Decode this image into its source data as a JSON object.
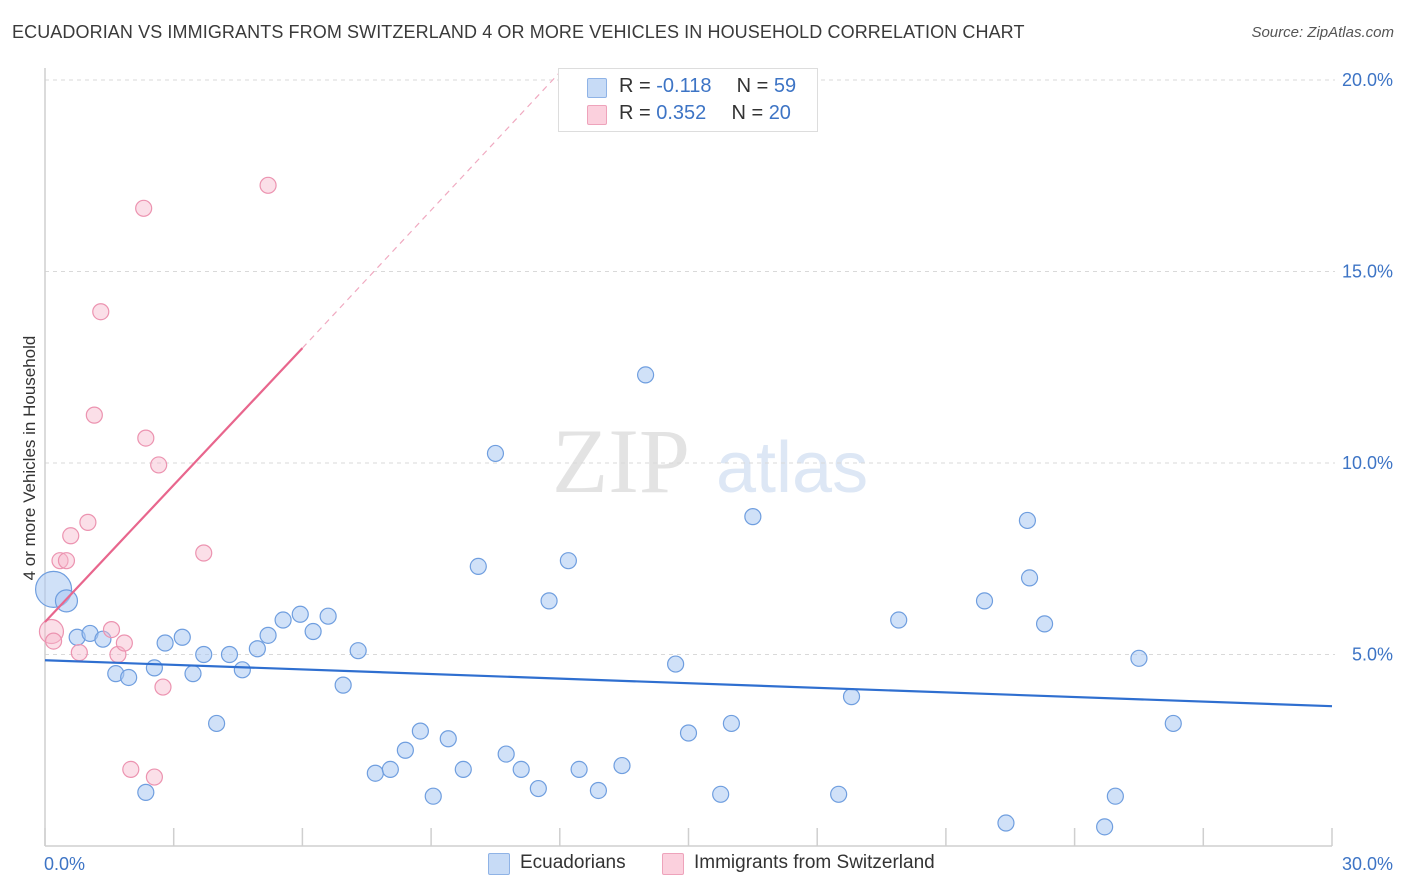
{
  "title": "ECUADORIAN VS IMMIGRANTS FROM SWITZERLAND 4 OR MORE VEHICLES IN HOUSEHOLD CORRELATION CHART",
  "source": "Source: ZipAtlas.com",
  "watermark": {
    "zip": "ZIP",
    "atlas": "atlas"
  },
  "legend": {
    "rows": [
      {
        "r_label": "R =",
        "r_value": "-0.118",
        "n_label": "N =",
        "n_value": "59",
        "color": "#a9c9f2"
      },
      {
        "r_label": "R =",
        "r_value": "0.352",
        "n_label": "N =",
        "n_value": "20",
        "color": "#f7b8cb"
      }
    ]
  },
  "bottom_legend": [
    {
      "label": "Ecuadorians",
      "color": "#a9c9f2"
    },
    {
      "label": "Immigrants from Switzerland",
      "color": "#f7b8cb"
    }
  ],
  "colors": {
    "blue_point": "#a9c9f2",
    "blue_line": "#2f6fd0",
    "pink_point": "#f7b8cb",
    "pink_line": "#e8668d",
    "tick_text": "#3d74c5",
    "grid": "#d9d9d9"
  },
  "chart_data": {
    "type": "scatter",
    "title": "ECUADORIAN VS IMMIGRANTS FROM SWITZERLAND 4 OR MORE VEHICLES IN HOUSEHOLD CORRELATION CHART",
    "xlabel": "",
    "ylabel": "4 or more Vehicles in Household",
    "xlim": [
      0,
      30
    ],
    "ylim": [
      0,
      20.5
    ],
    "x_tick_labels": [
      "0.0%",
      "30.0%"
    ],
    "y_ticks": [
      5,
      10,
      15,
      20
    ],
    "y_tick_labels": [
      "5.0%",
      "10.0%",
      "15.0%",
      "20.0%"
    ],
    "grid": true,
    "series": [
      {
        "name": "Ecuadorians",
        "color": "#a9c9f2",
        "points": [
          [
            0.2,
            6.7
          ],
          [
            0.5,
            6.4
          ],
          [
            0.75,
            5.45
          ],
          [
            1.05,
            5.55
          ],
          [
            1.35,
            5.4
          ],
          [
            1.65,
            4.5
          ],
          [
            1.95,
            4.4
          ],
          [
            2.35,
            1.4
          ],
          [
            2.55,
            4.65
          ],
          [
            2.8,
            5.3
          ],
          [
            3.2,
            5.45
          ],
          [
            3.45,
            4.5
          ],
          [
            3.7,
            5.0
          ],
          [
            4.0,
            3.2
          ],
          [
            4.3,
            5.0
          ],
          [
            4.6,
            4.6
          ],
          [
            4.95,
            5.15
          ],
          [
            5.2,
            5.5
          ],
          [
            5.55,
            5.9
          ],
          [
            5.95,
            6.05
          ],
          [
            6.25,
            5.6
          ],
          [
            6.6,
            6.0
          ],
          [
            6.95,
            4.2
          ],
          [
            7.3,
            5.1
          ],
          [
            7.7,
            1.9
          ],
          [
            8.05,
            2.0
          ],
          [
            8.4,
            2.5
          ],
          [
            8.75,
            3.0
          ],
          [
            9.05,
            1.3
          ],
          [
            9.4,
            2.8
          ],
          [
            9.75,
            2.0
          ],
          [
            10.1,
            7.3
          ],
          [
            10.5,
            10.25
          ],
          [
            10.75,
            2.4
          ],
          [
            11.1,
            2.0
          ],
          [
            11.5,
            1.5
          ],
          [
            11.75,
            6.4
          ],
          [
            12.2,
            7.45
          ],
          [
            12.45,
            2.0
          ],
          [
            12.9,
            1.45
          ],
          [
            13.45,
            2.1
          ],
          [
            14.0,
            12.3
          ],
          [
            14.7,
            4.75
          ],
          [
            15.0,
            2.95
          ],
          [
            15.75,
            1.35
          ],
          [
            16.0,
            3.2
          ],
          [
            16.5,
            8.6
          ],
          [
            18.5,
            1.35
          ],
          [
            18.8,
            3.9
          ],
          [
            19.9,
            5.9
          ],
          [
            21.9,
            6.4
          ],
          [
            22.4,
            0.6
          ],
          [
            22.9,
            8.5
          ],
          [
            22.95,
            7.0
          ],
          [
            23.3,
            5.8
          ],
          [
            24.7,
            0.5
          ],
          [
            24.95,
            1.3
          ],
          [
            25.5,
            4.9
          ],
          [
            26.3,
            3.2
          ]
        ],
        "trend": [
          [
            0,
            4.85
          ],
          [
            30,
            3.65
          ]
        ]
      },
      {
        "name": "Immigrants from Switzerland",
        "color": "#f7b8cb",
        "points": [
          [
            0.15,
            5.6
          ],
          [
            0.2,
            5.35
          ],
          [
            0.35,
            7.45
          ],
          [
            0.5,
            7.45
          ],
          [
            0.6,
            8.1
          ],
          [
            0.8,
            5.05
          ],
          [
            1.0,
            8.45
          ],
          [
            1.15,
            11.25
          ],
          [
            1.3,
            13.95
          ],
          [
            1.55,
            5.65
          ],
          [
            1.7,
            5.0
          ],
          [
            1.85,
            5.3
          ],
          [
            2.0,
            2.0
          ],
          [
            2.3,
            16.65
          ],
          [
            2.35,
            10.65
          ],
          [
            2.55,
            1.8
          ],
          [
            2.65,
            9.95
          ],
          [
            2.75,
            4.15
          ],
          [
            3.7,
            7.65
          ],
          [
            5.2,
            17.25
          ]
        ],
        "trend_solid": [
          [
            0,
            5.85
          ],
          [
            6.0,
            13.0
          ]
        ],
        "trend_dashed": [
          [
            6.0,
            13.0
          ],
          [
            12.0,
            20.2
          ]
        ]
      }
    ]
  }
}
